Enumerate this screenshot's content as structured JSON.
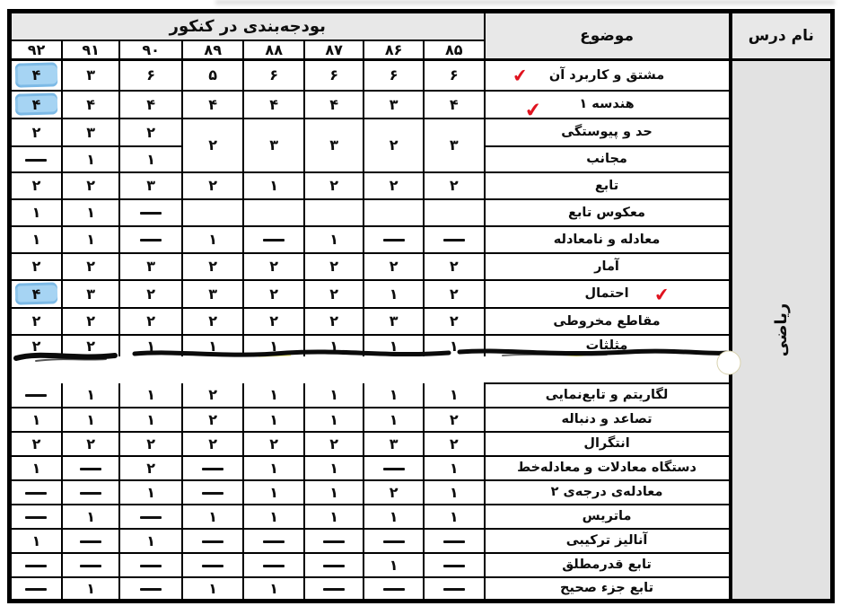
{
  "colors": {
    "highlight_blue": "#a6d4f3",
    "highlight_blue_edge": "#7abce8",
    "check_red": "#e0131f",
    "header_gray": "#e8e8e8",
    "course_gray": "#e2e2e2",
    "border_black": "#000000"
  },
  "table": {
    "group_header": "بودجه‌بندی در کنکور",
    "subject_header": "موضوع",
    "course_header": "نام درس",
    "course_name": "ریاضی",
    "years": [
      "۹۲",
      "۹۱",
      "۹۰",
      "۸۹",
      "۸۸",
      "۸۷",
      "۸۶",
      "۸۵"
    ],
    "torn_band_after_row": 10,
    "rows": [
      {
        "label": "مشتق و کاربرد آن",
        "check": "left",
        "values": [
          "۴",
          "۳",
          "۶",
          "۵",
          "۶",
          "۶",
          "۶",
          "۶"
        ],
        "highlight": [
          0
        ]
      },
      {
        "label": "هندسه ۱",
        "check": "left-low",
        "values": [
          "۴",
          "۴",
          "۴",
          "۴",
          "۴",
          "۴",
          "۳",
          "۴"
        ],
        "highlight": [
          0
        ]
      },
      {
        "label": "حد و پیوستگی",
        "values": [
          "۲",
          "۳",
          "۲"
        ],
        "merged_tail": [
          "۲",
          "۳",
          "۳",
          "۲",
          "۳"
        ]
      },
      {
        "label": "مجانب",
        "values": [
          "—",
          "۱",
          "۱"
        ],
        "tail_merged": true
      },
      {
        "label": "تابع",
        "values": [
          "۲",
          "۲",
          "۳",
          "۲",
          "۱",
          "۲",
          "۲",
          "۲"
        ]
      },
      {
        "label": "معکوس تابع",
        "values": [
          "۱",
          "۱",
          "—",
          "",
          "",
          "",
          "",
          ""
        ]
      },
      {
        "label": "معادله و نامعادله",
        "values": [
          "۱",
          "۱",
          "—",
          "۱",
          "—",
          "۱",
          "—",
          "—"
        ]
      },
      {
        "label": "آمار",
        "values": [
          "۲",
          "۲",
          "۳",
          "۲",
          "۲",
          "۲",
          "۲",
          "۲"
        ]
      },
      {
        "label": "احتمال",
        "check": "right",
        "values": [
          "۴",
          "۳",
          "۲",
          "۳",
          "۲",
          "۲",
          "۱",
          "۲"
        ],
        "highlight": [
          0
        ]
      },
      {
        "label": "مقاطع مخروطی",
        "values": [
          "۲",
          "۲",
          "۲",
          "۲",
          "۲",
          "۲",
          "۳",
          "۲"
        ]
      },
      {
        "label": "مثلثات",
        "values": [
          "۲",
          "۲",
          "۱",
          "۱",
          "۱",
          "۱",
          "۱",
          "۱"
        ]
      },
      {
        "label": "لگاریتم و تابع‌نمایی",
        "values": [
          "—",
          "۱",
          "۱",
          "۲",
          "۱",
          "۱",
          "۱",
          "۱"
        ]
      },
      {
        "label": "تصاعد و دنباله",
        "values": [
          "۱",
          "۱",
          "۱",
          "۲",
          "۱",
          "۱",
          "۱",
          "۲"
        ]
      },
      {
        "label": "انتگرال",
        "values": [
          "۲",
          "۲",
          "۲",
          "۲",
          "۲",
          "۲",
          "۳",
          "۲"
        ]
      },
      {
        "label": "دستگاه معادلات و معادله‌خط",
        "values": [
          "۱",
          "—",
          "۲",
          "—",
          "۱",
          "۱",
          "—",
          "۱"
        ]
      },
      {
        "label": "معادله‌ی درجه‌ی ۲",
        "values": [
          "—",
          "—",
          "۱",
          "—",
          "۱",
          "۱",
          "۲",
          "۱"
        ]
      },
      {
        "label": "ماتریس",
        "values": [
          "—",
          "۱",
          "—",
          "۱",
          "۱",
          "۱",
          "۱",
          "۱"
        ]
      },
      {
        "label": "آنالیز ترکیبی",
        "values": [
          "۱",
          "—",
          "۱",
          "—",
          "—",
          "—",
          "—",
          "—"
        ]
      },
      {
        "label": "تابع قدرمطلق",
        "values": [
          "—",
          "—",
          "—",
          "—",
          "—",
          "—",
          "۱",
          "—"
        ]
      },
      {
        "label": "تابع جزء صحیح",
        "values": [
          "—",
          "۱",
          "—",
          "۱",
          "۱",
          "—",
          "—",
          "—"
        ]
      }
    ]
  }
}
